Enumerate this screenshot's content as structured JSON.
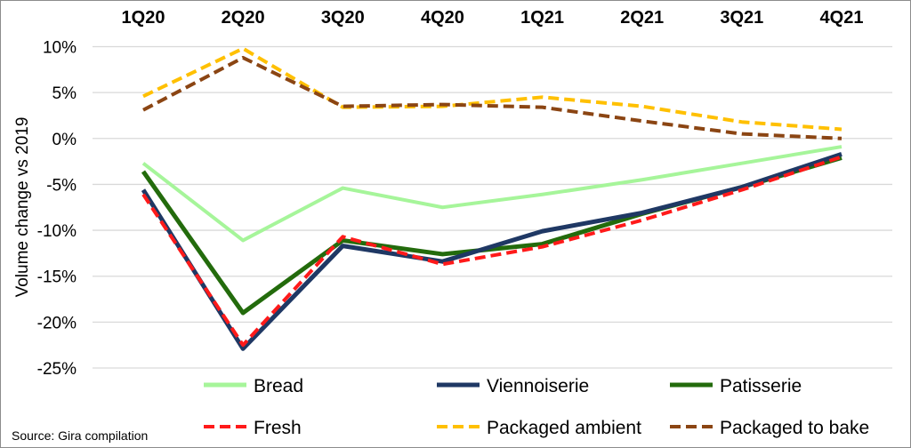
{
  "chart_data": {
    "type": "line",
    "title": "",
    "xlabel": "",
    "ylabel": "Volume change vs 2019",
    "categories": [
      "1Q20",
      "2Q20",
      "3Q20",
      "4Q20",
      "1Q21",
      "2Q21",
      "3Q21",
      "4Q21"
    ],
    "ylim": [
      -25,
      10
    ],
    "yticks": [
      "10%",
      "5%",
      "0%",
      "-5%",
      "-10%",
      "-15%",
      "-20%",
      "-25%"
    ],
    "ytick_values": [
      10,
      5,
      0,
      -5,
      -10,
      -15,
      -20,
      -25
    ],
    "grid": true,
    "legend_position": "bottom",
    "series": [
      {
        "name": "Bread",
        "color": "#a6f59a",
        "dash": false,
        "values": [
          -2.7,
          -11.1,
          -5.4,
          -7.5,
          -6.1,
          -4.5,
          -2.7,
          -0.9
        ]
      },
      {
        "name": "Viennoiserie",
        "color": "#1f3864",
        "dash": false,
        "values": [
          -5.6,
          -22.9,
          -11.7,
          -13.4,
          -10.1,
          -8.1,
          -5.3,
          -1.7
        ]
      },
      {
        "name": "Patisserie",
        "color": "#236b0c",
        "dash": false,
        "values": [
          -3.6,
          -19.0,
          -11.1,
          -12.6,
          -11.5,
          -8.2,
          -5.3,
          -2.1
        ]
      },
      {
        "name": "Fresh",
        "color": "#ff1a1a",
        "dash": true,
        "values": [
          -6.1,
          -22.5,
          -10.7,
          -13.7,
          -11.8,
          -8.9,
          -5.6,
          -2.0
        ]
      },
      {
        "name": "Packaged ambient",
        "color": "#ffc000",
        "dash": true,
        "values": [
          4.6,
          9.8,
          3.4,
          3.5,
          4.5,
          3.5,
          1.8,
          1.0
        ]
      },
      {
        "name": "Packaged to bake",
        "color": "#8b4513",
        "dash": true,
        "values": [
          3.1,
          8.8,
          3.5,
          3.7,
          3.4,
          1.9,
          0.5,
          0.0
        ]
      }
    ]
  },
  "source": "Source: Gira compilation"
}
